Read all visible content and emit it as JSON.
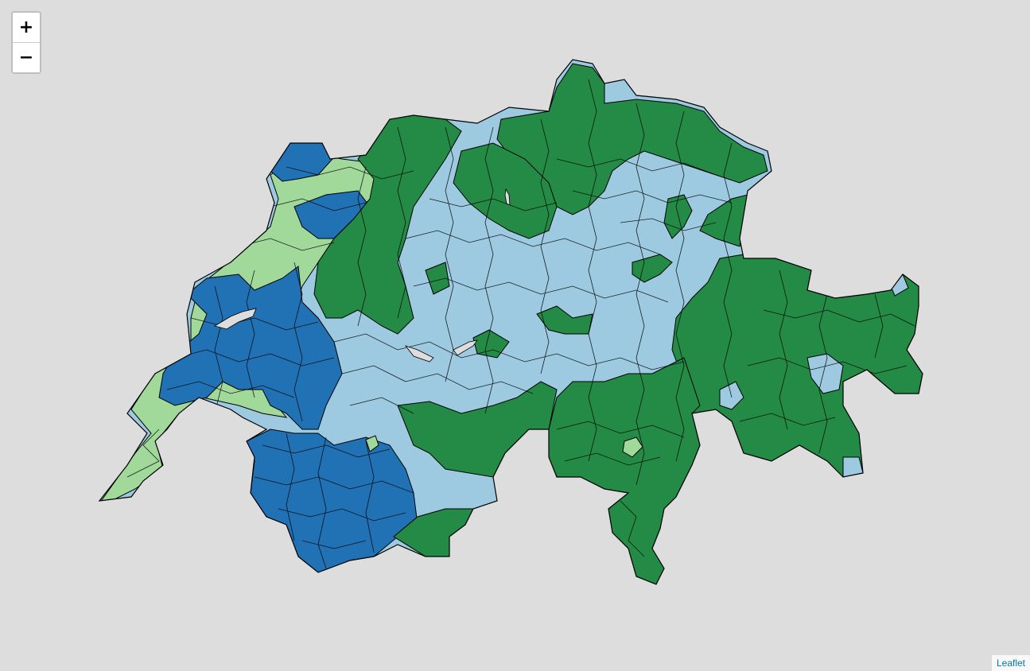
{
  "map": {
    "background": "#dddddd",
    "border_color": "#000000",
    "fill_colors": {
      "dark_blue": "#2171b5",
      "light_blue": "#9ecae1",
      "dark_green": "#238b45",
      "light_green": "#a1d99b"
    }
  },
  "zoom": {
    "zoom_in_label": "+",
    "zoom_out_label": "−"
  },
  "attribution": {
    "link_text": "Leaflet"
  }
}
